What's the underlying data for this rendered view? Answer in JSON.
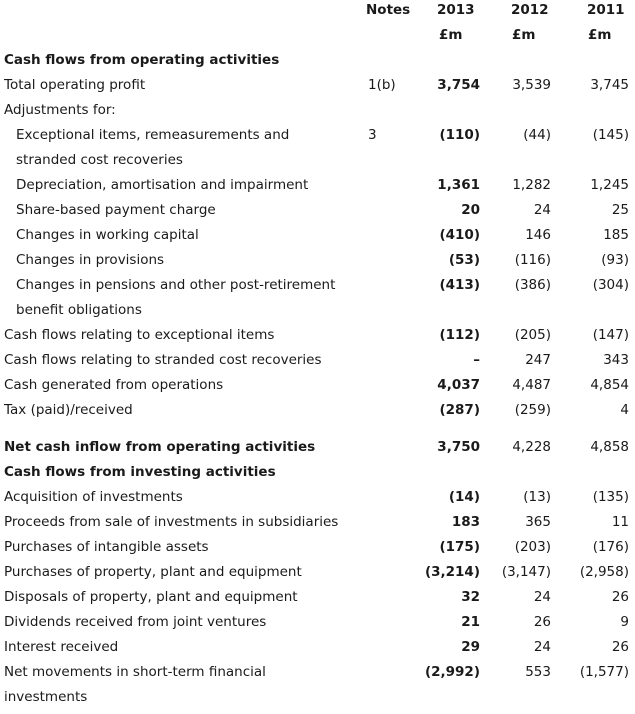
{
  "header": {
    "notes": "Notes",
    "y2013": "2013",
    "y2012": "2012",
    "y2011": "2011",
    "unit2013": "£m",
    "unit2012": "£m",
    "unit2011": "£m"
  },
  "rows": [
    {
      "label": "Cash flows from operating activities",
      "note": "",
      "v2013": "",
      "v2012": "",
      "v2011": ""
    },
    {
      "label": "Total operating profit",
      "note": "1(b)",
      "v2013": "3,754",
      "v2012": "3,539",
      "v2011": "3,745"
    },
    {
      "label": "Adjustments for:",
      "note": "",
      "v2013": "",
      "v2012": "",
      "v2011": ""
    },
    {
      "label": "Exceptional items, remeasurements and",
      "note": "3",
      "v2013": "(110)",
      "v2012": "(44)",
      "v2011": "(145)"
    },
    {
      "label": "stranded cost recoveries",
      "note": "",
      "v2013": "",
      "v2012": "",
      "v2011": ""
    },
    {
      "label": "Depreciation, amortisation and impairment",
      "note": "",
      "v2013": "1,361",
      "v2012": "1,282",
      "v2011": "1,245"
    },
    {
      "label": "Share-based payment charge",
      "note": "",
      "v2013": "20",
      "v2012": "24",
      "v2011": "25"
    },
    {
      "label": "Changes in working capital",
      "note": "",
      "v2013": "(410)",
      "v2012": "146",
      "v2011": "185"
    },
    {
      "label": "Changes in provisions",
      "note": "",
      "v2013": "(53)",
      "v2012": "(116)",
      "v2011": "(93)"
    },
    {
      "label": "Changes in pensions and other post-retirement",
      "note": "",
      "v2013": "(413)",
      "v2012": "(386)",
      "v2011": "(304)"
    },
    {
      "label": "benefit obligations",
      "note": "",
      "v2013": "",
      "v2012": "",
      "v2011": ""
    },
    {
      "label": "Cash flows relating to exceptional items",
      "note": "",
      "v2013": "(112)",
      "v2012": "(205)",
      "v2011": "(147)"
    },
    {
      "label": "Cash flows relating to stranded cost recoveries",
      "note": "",
      "v2013": "–",
      "v2012": "247",
      "v2011": "343"
    },
    {
      "label": "Cash generated from operations",
      "note": "",
      "v2013": "4,037",
      "v2012": "4,487",
      "v2011": "4,854"
    },
    {
      "label": "Tax (paid)/received",
      "note": "",
      "v2013": "(287)",
      "v2012": "(259)",
      "v2011": "4"
    },
    {
      "label": "Net cash inflow from operating activities",
      "note": "",
      "v2013": "3,750",
      "v2012": "4,228",
      "v2011": "4,858"
    },
    {
      "label": "Cash flows from investing activities",
      "note": "",
      "v2013": "",
      "v2012": "",
      "v2011": ""
    },
    {
      "label": "Acquisition of investments",
      "note": "",
      "v2013": "(14)",
      "v2012": "(13)",
      "v2011": "(135)"
    },
    {
      "label": "Proceeds from sale of investments in subsidiaries",
      "note": "",
      "v2013": "183",
      "v2012": "365",
      "v2011": "11"
    },
    {
      "label": "Purchases of intangible assets",
      "note": "",
      "v2013": "(175)",
      "v2012": "(203)",
      "v2011": "(176)"
    },
    {
      "label": "Purchases of property, plant and equipment",
      "note": "",
      "v2013": "(3,214)",
      "v2012": "(3,147)",
      "v2011": "(2,958)"
    },
    {
      "label": "Disposals of property, plant and equipment",
      "note": "",
      "v2013": "32",
      "v2012": "24",
      "v2011": "26"
    },
    {
      "label": "Dividends received from joint ventures",
      "note": "",
      "v2013": "21",
      "v2012": "26",
      "v2011": "9"
    },
    {
      "label": "Interest received",
      "note": "",
      "v2013": "29",
      "v2012": "24",
      "v2011": "26"
    },
    {
      "label": "Net movements in short-term financial",
      "note": "",
      "v2013": "(2,992)",
      "v2012": "553",
      "v2011": "(1,577)"
    },
    {
      "label": "investments",
      "note": "",
      "v2013": "",
      "v2012": "",
      "v2011": ""
    }
  ]
}
